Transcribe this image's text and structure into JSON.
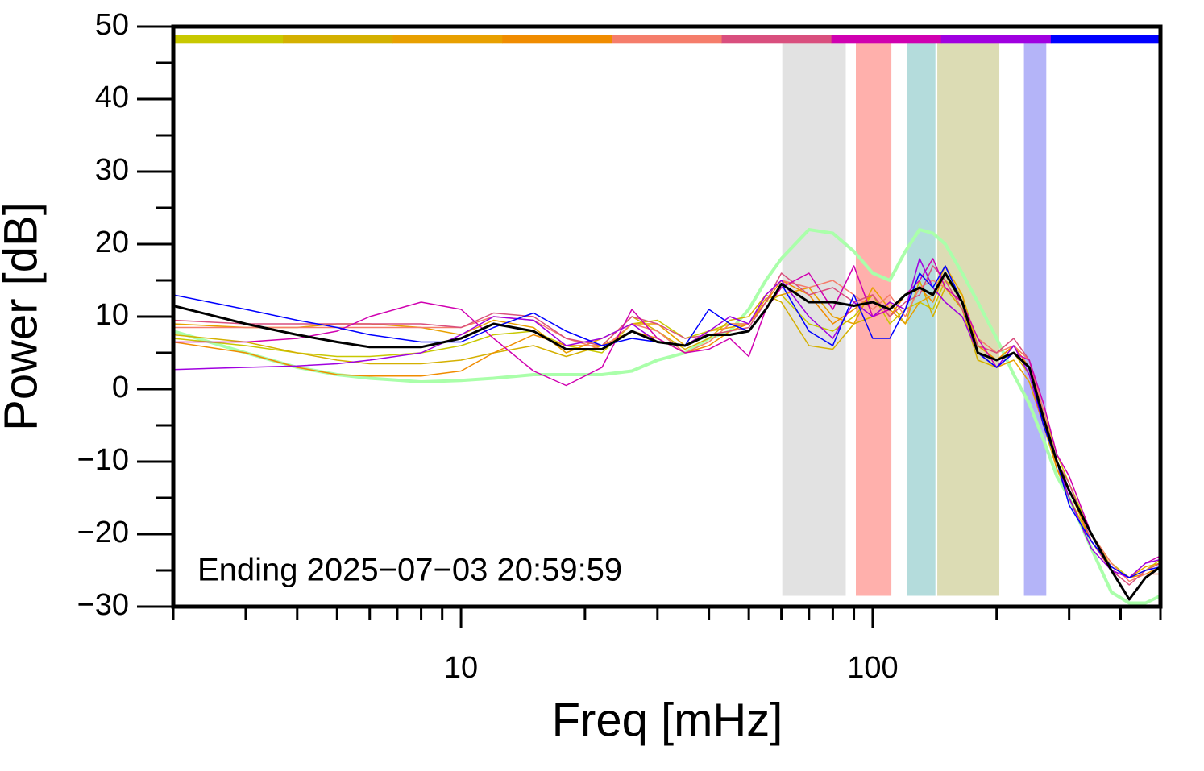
{
  "chart_data": {
    "type": "line",
    "xlabel": "Freq [mHz]",
    "ylabel": "Power [dB]",
    "annotation": "Ending 2025−07−03 20:59:59",
    "xscale": "log",
    "xlim": [
      2,
      500
    ],
    "ylim": [
      -30,
      50
    ],
    "xticks": [
      10,
      100
    ],
    "xminorticks": [
      2,
      3,
      4,
      5,
      6,
      7,
      8,
      9,
      20,
      30,
      40,
      50,
      60,
      70,
      80,
      90,
      200,
      300,
      400,
      500
    ],
    "yticks": [
      {
        "value": -30,
        "label": "−30"
      },
      {
        "value": -20,
        "label": "−20"
      },
      {
        "value": -10,
        "label": "−10"
      },
      0,
      10,
      20,
      30,
      40,
      50
    ],
    "yminorticks": [
      -25,
      -15,
      -5,
      5,
      15,
      25,
      35,
      45
    ],
    "bands": [
      {
        "xmin": 60.3,
        "xmax": 86,
        "color": "#e2e2e2"
      },
      {
        "xmin": 91,
        "xmax": 111,
        "color": "#ffb0ac"
      },
      {
        "xmin": 121,
        "xmax": 142,
        "color": "#b4dcdc"
      },
      {
        "xmin": 143.5,
        "xmax": 203,
        "color": "#dcdcb4"
      },
      {
        "xmin": 233,
        "xmax": 264,
        "color": "#b4b4f8"
      }
    ],
    "band_ylim": [
      -28.5,
      48
    ],
    "color_bar_y": 48.3,
    "color_bar": [
      "#c8c800",
      "#d4b000",
      "#e8a000",
      "#f08c00",
      "#f57d6b",
      "#d94f7e",
      "#d000b0",
      "#a000e0",
      "#0000ff"
    ],
    "x": [
      2,
      3,
      4,
      5,
      6,
      8,
      10,
      12,
      15,
      18,
      22,
      26,
      30,
      35,
      40,
      45,
      50,
      55,
      60,
      70,
      80,
      90,
      100,
      110,
      120,
      130,
      140,
      150,
      165,
      180,
      200,
      220,
      240,
      260,
      280,
      300,
      340,
      380,
      420,
      460,
      500
    ],
    "series": [
      {
        "color": "#aaffaa",
        "width": 4,
        "values": [
          8,
          5,
          3,
          2,
          1.5,
          1,
          1.2,
          1.5,
          2,
          2,
          2,
          2.5,
          4,
          5,
          7,
          8,
          11,
          15,
          18,
          22,
          21.5,
          19,
          16,
          15,
          19,
          22,
          21.5,
          20,
          16,
          12,
          7,
          2,
          -2,
          -7,
          -12,
          -15,
          -22,
          -28,
          -29.5,
          -29.5,
          -28.5
        ]
      },
      {
        "color": "#c8c800",
        "width": 1.5,
        "values": [
          7,
          6,
          5,
          4.5,
          4.5,
          5,
          6,
          7.5,
          8,
          6,
          5,
          9,
          9.5,
          7,
          8,
          9,
          9,
          12,
          13,
          9,
          8,
          10,
          13,
          9,
          11,
          12,
          11,
          15,
          13,
          6,
          4,
          6,
          4,
          -3,
          -9,
          -13,
          -20,
          -24,
          -26,
          -25,
          -23.5
        ]
      },
      {
        "color": "#d4b000",
        "width": 1.5,
        "values": [
          7.5,
          6.5,
          5,
          4,
          3.5,
          3.5,
          4,
          5,
          6,
          4.5,
          6,
          10,
          8,
          5.5,
          7,
          9.5,
          10,
          13,
          12,
          6,
          5.5,
          9,
          10,
          12,
          9,
          15,
          10,
          14,
          11,
          4,
          3,
          5,
          2,
          -5,
          -11,
          -15,
          -21,
          -25,
          -26,
          -25,
          -24
        ]
      },
      {
        "color": "#e8a000",
        "width": 1.5,
        "values": [
          9,
          8.5,
          8.5,
          9,
          9,
          8.5,
          7.5,
          9.5,
          8.5,
          5,
          7,
          9,
          9,
          6,
          8,
          8.5,
          9,
          12.5,
          13,
          14,
          10,
          9,
          14,
          11,
          9,
          12,
          13,
          17,
          13,
          5,
          3,
          4,
          1,
          -5,
          -10,
          -14,
          -20,
          -24.5,
          -26,
          -24.5,
          -24
        ]
      },
      {
        "color": "#f08c00",
        "width": 1.5,
        "values": [
          6.5,
          5,
          3,
          2,
          1.8,
          1.8,
          2.5,
          5,
          7.5,
          6,
          6,
          8,
          7,
          5,
          6,
          8,
          9,
          12,
          15,
          13,
          9,
          11,
          13,
          10,
          13,
          14,
          12,
          16,
          12,
          6,
          4,
          6,
          3,
          -4,
          -11,
          -14,
          -21,
          -25,
          -26,
          -25.5,
          -24.5
        ]
      },
      {
        "color": "#f57d6b",
        "width": 1.5,
        "values": [
          8.5,
          8.5,
          8.5,
          8.5,
          8.5,
          8.5,
          8.5,
          10,
          9.5,
          7,
          5.5,
          9,
          8,
          5,
          6.5,
          9,
          9,
          13,
          15,
          14,
          15,
          13,
          11,
          13,
          10,
          14,
          15,
          14,
          12,
          7,
          5,
          6,
          4,
          -3,
          -10,
          -14,
          -20,
          -24,
          -26.5,
          -25.5,
          -25.5
        ]
      },
      {
        "color": "#d94f7e",
        "width": 1.5,
        "values": [
          9.5,
          9,
          9,
          9,
          9,
          9,
          8.5,
          10.5,
          10,
          7,
          6,
          10,
          9,
          7,
          7.5,
          8,
          8.5,
          12,
          16,
          13,
          14,
          12,
          13,
          10,
          12,
          13,
          17,
          15,
          11,
          6,
          5,
          7,
          4,
          -4,
          -10,
          -13,
          -21,
          -25,
          -27,
          -25,
          -24
        ]
      },
      {
        "color": "#d000b0",
        "width": 1.5,
        "values": [
          6.5,
          6.5,
          7,
          8,
          10,
          12,
          11,
          7,
          2.5,
          0.5,
          3,
          11,
          7,
          5,
          5.5,
          7,
          4.5,
          11,
          14,
          16,
          11,
          17,
          10,
          11,
          13,
          15,
          18,
          14,
          12,
          7,
          3,
          5,
          4,
          -2,
          -9,
          -12,
          -20,
          -25,
          -26,
          -24,
          -23
        ]
      },
      {
        "color": "#a000e0",
        "width": 1.5,
        "values": [
          2.7,
          3,
          3.2,
          3.5,
          4,
          5,
          7.5,
          10,
          9.5,
          6,
          7,
          9,
          6.5,
          6,
          8,
          10,
          9,
          13,
          15,
          10,
          7,
          12,
          10,
          12,
          11,
          18,
          14,
          12,
          10,
          5,
          3,
          6,
          2,
          -5,
          -10,
          -15,
          -22,
          -25,
          -26,
          -24,
          -23.5
        ]
      },
      {
        "color": "#0000ff",
        "width": 1.5,
        "values": [
          13,
          11,
          9.5,
          8.5,
          7.5,
          6.5,
          6.5,
          8.5,
          10.5,
          8,
          6,
          7,
          6.5,
          6,
          11,
          9,
          8,
          11,
          14.5,
          8,
          6,
          13,
          7,
          7,
          11,
          16,
          14,
          17,
          12,
          5,
          3,
          5,
          3,
          -5,
          -10,
          -16,
          -21,
          -24.5,
          -26,
          -25,
          -24.5
        ]
      },
      {
        "color": "#000000",
        "width": 3,
        "values": [
          11.5,
          9,
          7.5,
          6.5,
          5.8,
          5.8,
          7,
          9,
          8,
          5.5,
          5.5,
          8,
          6.5,
          6,
          7.5,
          7.5,
          8,
          11,
          14.5,
          12,
          12,
          11.5,
          12,
          11,
          13,
          14,
          13,
          16,
          12,
          5,
          4,
          5,
          3,
          -4,
          -10,
          -14,
          -20,
          -25,
          -29,
          -26,
          -24.5
        ]
      }
    ]
  }
}
